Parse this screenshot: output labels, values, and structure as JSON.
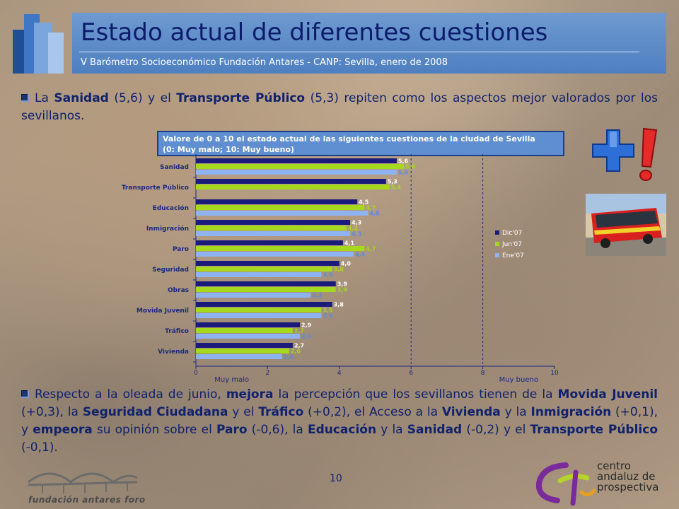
{
  "header": {
    "title": "Estado actual de diferentes cuestiones",
    "subtitle": "V Barómetro Socioeconómico Fundación Antares - CANP: Sevilla, enero de 2008"
  },
  "paragraph1": {
    "parts": [
      {
        "text": "La ",
        "bold": false
      },
      {
        "text": "Sanidad",
        "bold": true
      },
      {
        "text": " (5,6) y el ",
        "bold": false
      },
      {
        "text": "Transporte Público",
        "bold": true
      },
      {
        "text": " (5,3) repiten como los aspectos mejor valorados por los sevillanos.",
        "bold": false
      }
    ]
  },
  "paragraph2": {
    "parts": [
      {
        "text": "Respecto a la oleada de junio, ",
        "bold": false
      },
      {
        "text": "mejora",
        "bold": true
      },
      {
        "text": " la percepción que los sevillanos tienen de la ",
        "bold": false
      },
      {
        "text": "Movida Juvenil",
        "bold": true
      },
      {
        "text": " (+0,3), la ",
        "bold": false
      },
      {
        "text": "Seguridad Ciudadana",
        "bold": true
      },
      {
        "text": " y el ",
        "bold": false
      },
      {
        "text": "Tráfico",
        "bold": true
      },
      {
        "text": " (+0,2), el Acceso a la ",
        "bold": false
      },
      {
        "text": "Vivienda",
        "bold": true
      },
      {
        "text": " y la ",
        "bold": false
      },
      {
        "text": "Inmigración",
        "bold": true
      },
      {
        "text": " (+0,1), y ",
        "bold": false
      },
      {
        "text": "empeora",
        "bold": true
      },
      {
        "text": " su opinión sobre el ",
        "bold": false
      },
      {
        "text": "Paro",
        "bold": true
      },
      {
        "text": " (-0,6), la ",
        "bold": false
      },
      {
        "text": "Educación",
        "bold": true
      },
      {
        "text": " y la ",
        "bold": false
      },
      {
        "text": "Sanidad",
        "bold": true
      },
      {
        "text": " (-0,2) y el ",
        "bold": false
      },
      {
        "text": "Transporte Público",
        "bold": true
      },
      {
        "text": " (-0,1).",
        "bold": false
      }
    ]
  },
  "chart_data": {
    "type": "bar",
    "orientation": "horizontal",
    "title": "Valore de 0 a 10 el estado actual de las siguientes cuestiones de la ciudad de Sevilla",
    "subtitle": "(0: Muy malo; 10: Muy bueno)",
    "categories": [
      "Sanidad",
      "Transporte Público",
      "Educación",
      "Inmigración",
      "Paro",
      "Seguridad",
      "Obras",
      "Movida Juvenil",
      "Tráfico",
      "Vivienda"
    ],
    "series": [
      {
        "name": "Dic'07",
        "color": "#1a1a7a",
        "label_color": "#ffffff",
        "values": [
          5.6,
          5.3,
          4.5,
          4.3,
          4.1,
          4.0,
          3.9,
          3.8,
          2.9,
          2.7
        ],
        "labels": [
          "5,6",
          "5,3",
          "4,5",
          "4,3",
          "4,1",
          "4,0",
          "3,9",
          "3,8",
          "2,9",
          "2,7"
        ]
      },
      {
        "name": "Jun'07",
        "color": "#a6d81e",
        "label_color": "#a6d81e",
        "values": [
          5.8,
          5.4,
          4.7,
          4.2,
          4.7,
          3.8,
          3.9,
          3.5,
          2.7,
          2.6
        ],
        "labels": [
          "5,8",
          "5,4",
          "4,7",
          "4,2",
          "4,7",
          "3,8",
          "3,9",
          "3,5",
          "2,7",
          "2,6"
        ]
      },
      {
        "name": "Ene'07",
        "color": "#8fb3f0",
        "label_color": "#5a8ae0",
        "values": [
          5.6,
          null,
          4.8,
          4.3,
          4.4,
          3.5,
          3.2,
          3.5,
          2.9,
          2.4
        ],
        "labels": [
          "5,6",
          "",
          "4,8",
          "4,3",
          "4,4",
          "3,5",
          "3,2",
          "3,5",
          "2,9",
          "2,4"
        ]
      }
    ],
    "xlim": [
      0,
      10
    ],
    "xticks": [
      "0",
      "2",
      "4",
      "6",
      "8",
      "10"
    ],
    "x_annotations": [
      {
        "text": "Muy malo",
        "at": 1
      },
      {
        "text": "Muy bueno",
        "at": 9
      }
    ],
    "reference_lines_dashed": [
      6,
      8
    ],
    "legend_position": "right"
  },
  "footer": {
    "page_number": "10",
    "foundation_name": "fundación antares foro",
    "center_name_lines": [
      "centro",
      "andaluz de",
      "prospectiva"
    ]
  }
}
